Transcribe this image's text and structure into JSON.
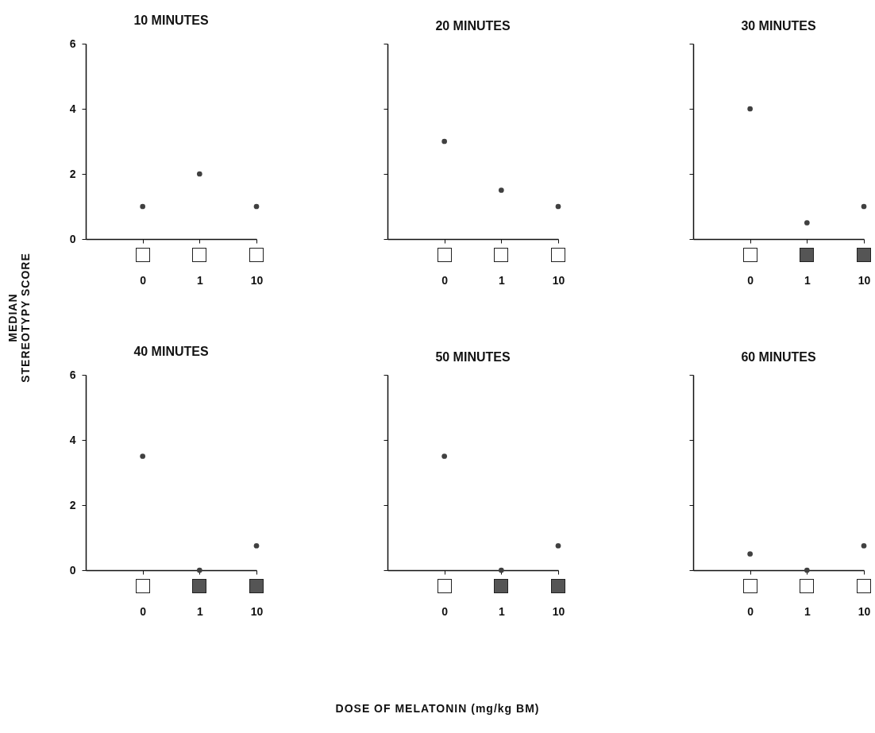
{
  "chart_data": [
    {
      "type": "scatter",
      "title": "10 MINUTES",
      "ylabel": "MEDIAN\nSTEREOTYPY SCORE",
      "categories": [
        "0",
        "1",
        "10"
      ],
      "values": [
        1,
        2,
        1
      ],
      "color": "#404040",
      "marker": "circle",
      "ylim": [
        0,
        6
      ],
      "yticks": [
        0,
        2,
        4,
        6
      ]
    },
    {
      "type": "scatter",
      "title": "20 MINUTES",
      "categories": [
        "0",
        "1",
        "10"
      ],
      "values": [
        3,
        1.5,
        1
      ],
      "color": "#404040",
      "marker": "circle",
      "ylim": [
        0,
        6
      ],
      "yticks": [
        0,
        2,
        4,
        6
      ],
      "tick_labels": "x"
    },
    {
      "type": "scatter",
      "title": "30 MINUTES",
      "categories": [
        "0",
        "1",
        "10"
      ],
      "values": [
        4,
        0.5,
        1
      ],
      "color": "#404040",
      "marker": "circle",
      "ylim": [
        0,
        6
      ],
      "yticks": [
        0,
        2,
        4,
        6
      ],
      "tick_labels": "x"
    },
    {
      "type": "scatter",
      "title": "40 MINUTES",
      "categories": [
        "0",
        "1",
        "10"
      ],
      "values": [
        3.5,
        0,
        0.75
      ],
      "color": "#404040",
      "marker": "circle",
      "ylim": [
        0,
        6
      ],
      "yticks": [
        0,
        2,
        4,
        6
      ]
    },
    {
      "type": "scatter",
      "title": "50 MINUTES",
      "xlabel": "DOSE OF MELATONIN (mg/kg BM)",
      "categories": [
        "0",
        "1",
        "10"
      ],
      "values": [
        3.5,
        0,
        0.75
      ],
      "color": "#404040",
      "marker": "circle",
      "ylim": [
        0,
        6
      ],
      "yticks": [
        0,
        2,
        4,
        6
      ],
      "tick_labels": "x"
    },
    {
      "type": "scatter",
      "title": "60 MINUTES",
      "categories": [
        "0",
        "1",
        "10"
      ],
      "values": [
        0.5,
        0,
        0.75
      ],
      "color": "#404040",
      "marker": "circle",
      "ylim": [
        0,
        6
      ],
      "yticks": [
        0,
        2,
        4,
        6
      ],
      "tick_labels": "x"
    }
  ]
}
